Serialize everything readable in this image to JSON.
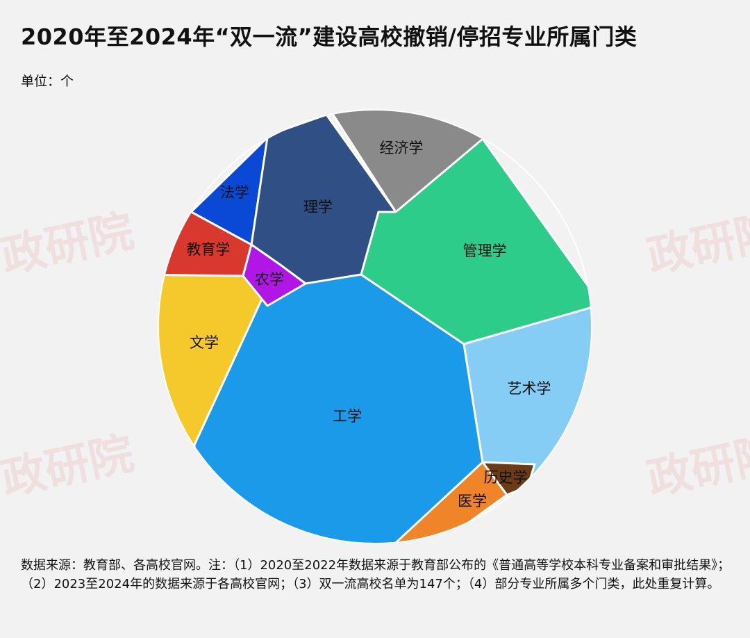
{
  "header": {
    "title": "2020年至2024年“双一流”建设高校撤销/停招专业所属门类",
    "unit": "单位：个"
  },
  "watermark": {
    "text": "政研院"
  },
  "footer": {
    "source": "数据来源：教育部、各高校官网。注：（1）2020至2022年数据来源于教育部公布的《普通高等学校本科专业备案和审批结果》；（2）2023至2024年的数据来源于各高校官网；（3）双一流高校名单为147个；（4）部分专业所属多个门类，此处重复计算。"
  },
  "chart_data": {
    "type": "voronoi-treemap",
    "title": "2020年至2024年“双一流”建设高校撤销/停招专业所属门类",
    "categories": [
      "工学",
      "管理学",
      "艺术学",
      "文学",
      "理学",
      "经济学",
      "法学",
      "教育学",
      "医学",
      "农学",
      "历史学"
    ],
    "colors": {
      "工学": "#1a9ae8",
      "管理学": "#2dcc8a",
      "艺术学": "#86cdf5",
      "文学": "#f5c92b",
      "理学": "#2f4f85",
      "经济学": "#8a8a8a",
      "法学": "#0a48d6",
      "教育学": "#d8382e",
      "医学": "#ef8428",
      "农学": "#b016e6",
      "历史学": "#6a3b15"
    }
  }
}
